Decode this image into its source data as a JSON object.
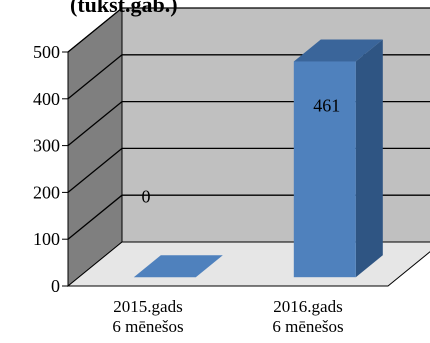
{
  "chart_data": {
    "type": "bar",
    "title": "(tūkst.gab.)",
    "xlabel": "",
    "ylabel": "",
    "categories": [
      [
        "2015.gads",
        "6 mēnešos"
      ],
      [
        "2016.gads",
        "6 mēnešos"
      ]
    ],
    "values": [
      0,
      461
    ],
    "ylim": [
      0,
      500
    ],
    "yticks": [
      0,
      100,
      200,
      300,
      400,
      500
    ],
    "grid": true,
    "legend": "none",
    "style": "3d-column",
    "colors": {
      "bar_front": "#4f81bd",
      "bar_side": "#2f5583",
      "bar_top": "#3a659a",
      "wall": "#c0c0c0",
      "left_wall": "#7f7f7f",
      "floor": "#e6e6e6",
      "gridline": "#000000"
    }
  }
}
